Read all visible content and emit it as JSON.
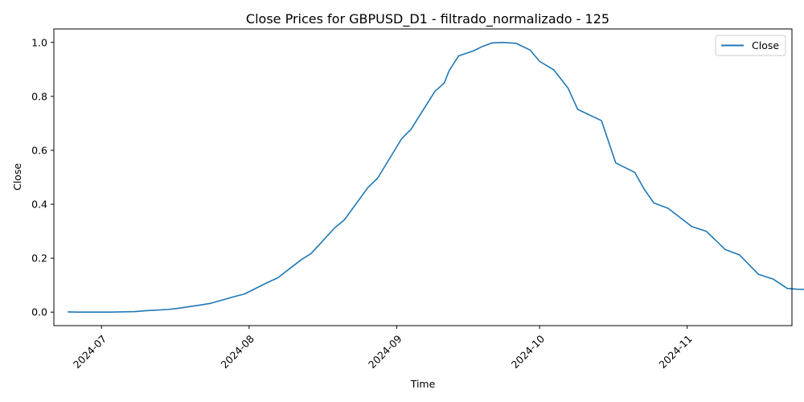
{
  "chart_data": {
    "type": "line",
    "title": "Close Prices for GBPUSD_D1 - filtrado_normalizado - 125",
    "xlabel": "Time",
    "ylabel": "Close",
    "ylim": [
      -0.05,
      1.05
    ],
    "xlim": [
      "2024-06-21",
      "2024-11-23"
    ],
    "grid": false,
    "legend_position": "top-right",
    "x_ticks": [
      "2024-07",
      "2024-08",
      "2024-09",
      "2024-10",
      "2024-11"
    ],
    "y_ticks": [
      "0.0",
      "0.2",
      "0.4",
      "0.6",
      "0.8",
      "1.0"
    ],
    "series": [
      {
        "name": "Close",
        "color": "#1f77b4",
        "points": [
          [
            "2024-06-24",
            0.001
          ],
          [
            "2024-06-26",
            0.0
          ],
          [
            "2024-07-01",
            0.0
          ],
          [
            "2024-07-03",
            0.0
          ],
          [
            "2024-07-08",
            0.002
          ],
          [
            "2024-07-10",
            0.005
          ],
          [
            "2024-07-15",
            0.01
          ],
          [
            "2024-07-17",
            0.014
          ],
          [
            "2024-07-22",
            0.027
          ],
          [
            "2024-07-24",
            0.033
          ],
          [
            "2024-07-29",
            0.058
          ],
          [
            "2024-07-31",
            0.067
          ],
          [
            "2024-08-05",
            0.111
          ],
          [
            "2024-08-07",
            0.127
          ],
          [
            "2024-08-12",
            0.195
          ],
          [
            "2024-08-14",
            0.217
          ],
          [
            "2024-08-19",
            0.313
          ],
          [
            "2024-08-21",
            0.342
          ],
          [
            "2024-08-26",
            0.463
          ],
          [
            "2024-08-28",
            0.497
          ],
          [
            "2024-09-02",
            0.642
          ],
          [
            "2024-09-04",
            0.678
          ],
          [
            "2024-09-09",
            0.818
          ],
          [
            "2024-09-11",
            0.85
          ],
          [
            "2024-09-12",
            0.895
          ],
          [
            "2024-09-14",
            0.95
          ],
          [
            "2024-09-17",
            0.968
          ],
          [
            "2024-09-19",
            0.985
          ],
          [
            "2024-09-21",
            0.998
          ],
          [
            "2024-09-23",
            1.0
          ],
          [
            "2024-09-26",
            0.997
          ],
          [
            "2024-09-29",
            0.972
          ],
          [
            "2024-10-01",
            0.93
          ],
          [
            "2024-10-04",
            0.898
          ],
          [
            "2024-10-07",
            0.83
          ],
          [
            "2024-10-09",
            0.752
          ],
          [
            "2024-10-14",
            0.71
          ],
          [
            "2024-10-17",
            0.553
          ],
          [
            "2024-10-21",
            0.518
          ],
          [
            "2024-10-23",
            0.455
          ],
          [
            "2024-10-25",
            0.405
          ],
          [
            "2024-10-28",
            0.385
          ],
          [
            "2024-11-02",
            0.317
          ],
          [
            "2024-11-05",
            0.3
          ],
          [
            "2024-11-09",
            0.232
          ],
          [
            "2024-11-12",
            0.212
          ],
          [
            "2024-11-16",
            0.14
          ],
          [
            "2024-11-19",
            0.123
          ],
          [
            "2024-11-21",
            0.1
          ],
          [
            "2024-11-22",
            0.088
          ],
          [
            "2024-11-24",
            0.085
          ],
          [
            "2024-11-27",
            0.084
          ]
        ]
      }
    ]
  }
}
